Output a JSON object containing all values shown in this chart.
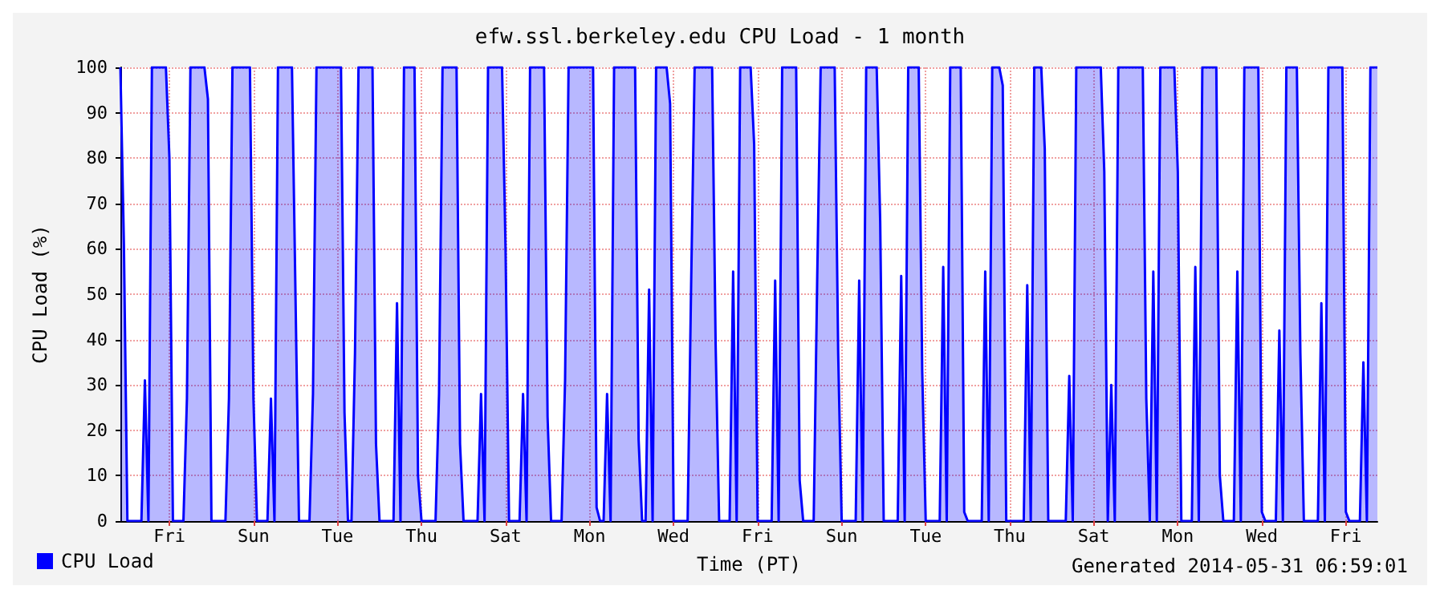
{
  "chart_data": {
    "type": "area",
    "title": "efw.ssl.berkeley.edu CPU Load - 1 month",
    "xlabel": "Time (PT)",
    "ylabel": "CPU Load (%)",
    "annotations": [
      "Generated 2014-05-31 06:59:01"
    ],
    "ylim": [
      0,
      100
    ],
    "yticks": [
      0,
      10,
      20,
      30,
      40,
      50,
      60,
      70,
      80,
      90,
      100
    ],
    "grid": true,
    "legend": "bottom left",
    "categories": [
      null,
      null,
      null,
      null,
      null,
      null,
      null,
      null,
      null,
      null,
      null,
      null,
      null,
      null,
      "Fri",
      null,
      null,
      null,
      null,
      null,
      null,
      null,
      null,
      null,
      null,
      null,
      null,
      null,
      null,
      null,
      null,
      null,
      null,
      null,
      null,
      null,
      null,
      null,
      "Sun",
      null,
      null,
      null,
      null,
      null,
      null,
      null,
      null,
      null,
      null,
      null,
      null,
      null,
      null,
      null,
      null,
      null,
      null,
      null,
      null,
      null,
      null,
      null,
      "Tue",
      null,
      null,
      null,
      null,
      null,
      null,
      null,
      null,
      null,
      null,
      null,
      null,
      null,
      null,
      null,
      null,
      null,
      null,
      null,
      null,
      null,
      null,
      null,
      "Thu",
      null,
      null,
      null,
      null,
      null,
      null,
      null,
      null,
      null,
      null,
      null,
      null,
      null,
      null,
      null,
      null,
      null,
      null,
      null,
      null,
      null,
      null,
      null,
      "Sat",
      null,
      null,
      null,
      null,
      null,
      null,
      null,
      null,
      null,
      null,
      null,
      null,
      null,
      null,
      null,
      null,
      null,
      null,
      null,
      null,
      null,
      null,
      null,
      "Mon",
      null,
      null,
      null,
      null,
      null,
      null,
      null,
      null,
      null,
      null,
      null,
      null,
      null,
      null,
      null,
      null,
      null,
      null,
      null,
      null,
      null,
      null,
      null,
      "Wed",
      null,
      null,
      null,
      null,
      null,
      null,
      null,
      null,
      null,
      null,
      null,
      null,
      null,
      null,
      null,
      null,
      null,
      null,
      null,
      null,
      null,
      null,
      null,
      "Fri",
      null,
      null,
      null,
      null,
      null,
      null,
      null,
      null,
      null,
      null,
      null,
      null,
      null,
      null,
      null,
      null,
      null,
      null,
      null,
      null,
      null,
      null,
      null,
      "Sun",
      null,
      null,
      null,
      null,
      null,
      null,
      null,
      null,
      null,
      null,
      null,
      null,
      null,
      null,
      null,
      null,
      null,
      null,
      null,
      null,
      null,
      null,
      null,
      "Tue",
      null,
      null,
      null,
      null,
      null,
      null,
      null,
      null,
      null,
      null,
      null,
      null,
      null,
      null,
      null,
      null,
      null,
      null,
      null,
      null,
      null,
      null,
      null,
      "Thu",
      null,
      null,
      null,
      null,
      null,
      null,
      null,
      null,
      null,
      null,
      null,
      null,
      null,
      null,
      null,
      null,
      null,
      null,
      null,
      null,
      null,
      null,
      null,
      "Sat",
      null,
      null,
      null,
      null,
      null,
      null,
      null,
      null,
      null,
      null,
      null,
      null,
      null,
      null,
      null,
      null,
      null,
      null,
      null,
      null,
      null,
      null,
      null,
      "Mon",
      null,
      null,
      null,
      null,
      null,
      null,
      null,
      null,
      null,
      null,
      null,
      null,
      null,
      null,
      null,
      null,
      null,
      null,
      null,
      null,
      null,
      null,
      null,
      "Wed",
      null,
      null,
      null,
      null,
      null,
      null,
      null,
      null,
      null,
      null,
      null,
      null,
      null,
      null,
      null,
      null,
      null,
      null,
      null,
      null,
      null,
      null,
      null,
      "Fri",
      null,
      null,
      null,
      null,
      null,
      null,
      null,
      null,
      null
    ],
    "series": [
      {
        "name": "CPU Load",
        "color": "#0000ff",
        "values": [
          100,
          61,
          0,
          0,
          0,
          0,
          0,
          31,
          0,
          100,
          100,
          100,
          100,
          100,
          80,
          0,
          0,
          0,
          0,
          27,
          100,
          100,
          100,
          100,
          100,
          93,
          0,
          0,
          0,
          0,
          0,
          27,
          100,
          100,
          100,
          100,
          100,
          100,
          27,
          0,
          0,
          0,
          0,
          27,
          0,
          100,
          100,
          100,
          100,
          100,
          50,
          0,
          0,
          0,
          0,
          28,
          100,
          100,
          100,
          100,
          100,
          100,
          100,
          100,
          24,
          0,
          0,
          37,
          100,
          100,
          100,
          100,
          100,
          17,
          0,
          0,
          0,
          0,
          0,
          48,
          0,
          100,
          100,
          100,
          100,
          10,
          0,
          0,
          0,
          0,
          0,
          28,
          100,
          100,
          100,
          100,
          100,
          17,
          0,
          0,
          0,
          0,
          0,
          28,
          0,
          100,
          100,
          100,
          100,
          100,
          60,
          0,
          0,
          0,
          0,
          28,
          0,
          100,
          100,
          100,
          100,
          100,
          23,
          0,
          0,
          0,
          0,
          31,
          100,
          100,
          100,
          100,
          100,
          100,
          100,
          100,
          3,
          0,
          0,
          28,
          0,
          100,
          100,
          100,
          100,
          100,
          100,
          100,
          18,
          0,
          0,
          51,
          0,
          100,
          100,
          100,
          100,
          92,
          0,
          0,
          0,
          0,
          0,
          52,
          100,
          100,
          100,
          100,
          100,
          100,
          39,
          0,
          0,
          0,
          0,
          55,
          0,
          100,
          100,
          100,
          100,
          83,
          0,
          0,
          0,
          0,
          0,
          53,
          0,
          100,
          100,
          100,
          100,
          100,
          9,
          0,
          0,
          0,
          0,
          53,
          100,
          100,
          100,
          100,
          100,
          37,
          0,
          0,
          0,
          0,
          0,
          53,
          0,
          100,
          100,
          100,
          100,
          66,
          0,
          0,
          0,
          0,
          0,
          54,
          0,
          100,
          100,
          100,
          100,
          33,
          0,
          0,
          0,
          0,
          0,
          56,
          0,
          100,
          100,
          100,
          100,
          2,
          0,
          0,
          0,
          0,
          0,
          55,
          0,
          100,
          100,
          100,
          96,
          0,
          0,
          0,
          0,
          0,
          0,
          52,
          0,
          100,
          100,
          100,
          82,
          0,
          0,
          0,
          0,
          0,
          0,
          32,
          0,
          100,
          100,
          100,
          100,
          100,
          100,
          100,
          100,
          77,
          0,
          30,
          0,
          100,
          100,
          100,
          100,
          100,
          100,
          100,
          100,
          27,
          0,
          55,
          0,
          100,
          100,
          100,
          100,
          100,
          77,
          0,
          0,
          0,
          0,
          56,
          0,
          100,
          100,
          100,
          100,
          100,
          10,
          0,
          0,
          0,
          0,
          55,
          0,
          100,
          100,
          100,
          100,
          100,
          2,
          0,
          0,
          0,
          0,
          42,
          0,
          100,
          100,
          100,
          100,
          37,
          0,
          0,
          0,
          0,
          0,
          48,
          0,
          100,
          100,
          100,
          100,
          100,
          2,
          0,
          0,
          0,
          0,
          35,
          0,
          100,
          100,
          100
        ]
      }
    ]
  }
}
